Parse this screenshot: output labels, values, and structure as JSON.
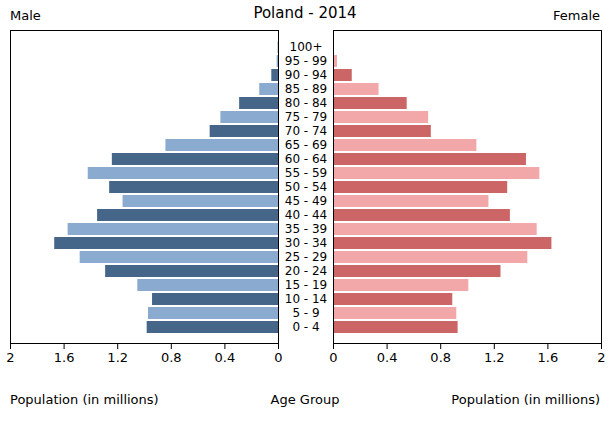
{
  "chart_data": {
    "type": "bar",
    "orientation": "horizontal",
    "title": "Poland - 2014",
    "x_label": "Population (in millions)",
    "y_label": "Age Group",
    "categories": [
      "0 - 4",
      "5 - 9",
      "10 - 14",
      "15 - 19",
      "20 - 24",
      "25 - 29",
      "30 - 34",
      "35 - 39",
      "40 - 44",
      "45 - 49",
      "50 - 54",
      "55 - 59",
      "60 - 64",
      "65 - 69",
      "70 - 74",
      "75 - 79",
      "80 - 84",
      "85 - 89",
      "90 - 94",
      "95 - 99",
      "100+"
    ],
    "series": [
      {
        "name": "Male",
        "values": [
          0.98,
          0.97,
          0.94,
          1.05,
          1.29,
          1.48,
          1.67,
          1.57,
          1.35,
          1.16,
          1.26,
          1.42,
          1.24,
          0.84,
          0.51,
          0.43,
          0.29,
          0.14,
          0.05,
          0.01,
          0.002
        ],
        "colors": [
          "#456589",
          "#8aaacf",
          "#456589",
          "#8aaacf",
          "#456589",
          "#8aaacf",
          "#456589",
          "#8aaacf",
          "#456589",
          "#8aaacf",
          "#456589",
          "#8aaacf",
          "#456589",
          "#8aaacf",
          "#456589",
          "#8aaacf",
          "#456589",
          "#8aaacf",
          "#456589",
          "#8aaacf",
          "#456589"
        ]
      },
      {
        "name": "Female",
        "values": [
          0.93,
          0.92,
          0.89,
          1.01,
          1.25,
          1.45,
          1.63,
          1.52,
          1.32,
          1.16,
          1.3,
          1.54,
          1.44,
          1.07,
          0.73,
          0.71,
          0.55,
          0.34,
          0.14,
          0.03,
          0.005
        ],
        "colors": [
          "#cc6666",
          "#f2a8a8",
          "#cc6666",
          "#f2a8a8",
          "#cc6666",
          "#f2a8a8",
          "#cc6666",
          "#f2a8a8",
          "#cc6666",
          "#f2a8a8",
          "#cc6666",
          "#f2a8a8",
          "#cc6666",
          "#f2a8a8",
          "#cc6666",
          "#f2a8a8",
          "#cc6666",
          "#f2a8a8",
          "#cc6666",
          "#f2a8a8",
          "#cc6666"
        ]
      }
    ],
    "xlim": [
      0,
      2
    ],
    "xticks": [
      0,
      0.4,
      0.8,
      1.2,
      1.6,
      2
    ],
    "grid": false
  }
}
